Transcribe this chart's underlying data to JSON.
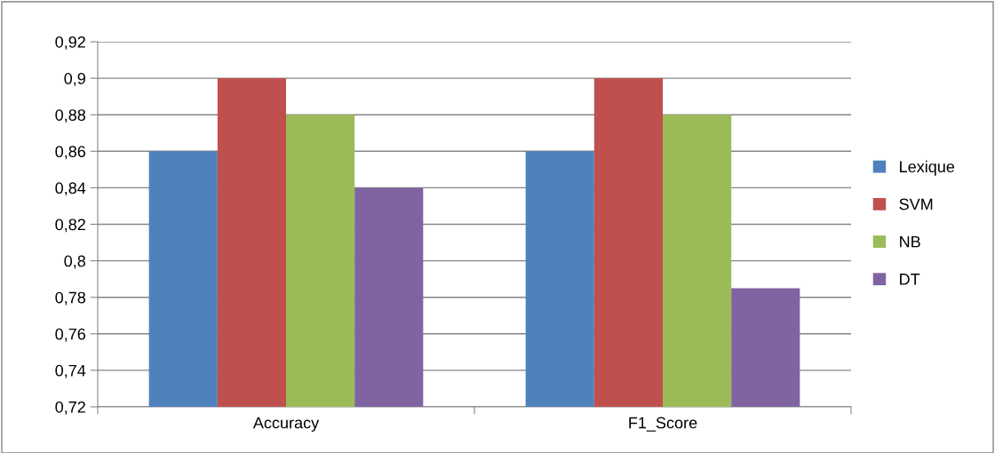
{
  "chart_data": {
    "type": "bar",
    "categories": [
      "Accuracy",
      "F1_Score"
    ],
    "series": [
      {
        "name": "Lexique",
        "color": "#4f81bd",
        "values": [
          0.86,
          0.86
        ]
      },
      {
        "name": "SVM",
        "color": "#c0504d",
        "values": [
          0.9,
          0.9
        ]
      },
      {
        "name": "NB",
        "color": "#9bbb59",
        "values": [
          0.88,
          0.88
        ]
      },
      {
        "name": "DT",
        "color": "#8064a2",
        "values": [
          0.84,
          0.785
        ]
      }
    ],
    "ylim": [
      0.72,
      0.92
    ],
    "yticks": [
      {
        "value": 0.72,
        "label": "0,72"
      },
      {
        "value": 0.74,
        "label": "0,74"
      },
      {
        "value": 0.76,
        "label": "0,76"
      },
      {
        "value": 0.78,
        "label": "0,78"
      },
      {
        "value": 0.8,
        "label": "0,8"
      },
      {
        "value": 0.82,
        "label": "0,82"
      },
      {
        "value": 0.84,
        "label": "0,84"
      },
      {
        "value": 0.86,
        "label": "0,86"
      },
      {
        "value": 0.88,
        "label": "0,88"
      },
      {
        "value": 0.9,
        "label": "0,9"
      },
      {
        "value": 0.92,
        "label": "0,92"
      }
    ],
    "grid": "y",
    "legend": "right"
  }
}
